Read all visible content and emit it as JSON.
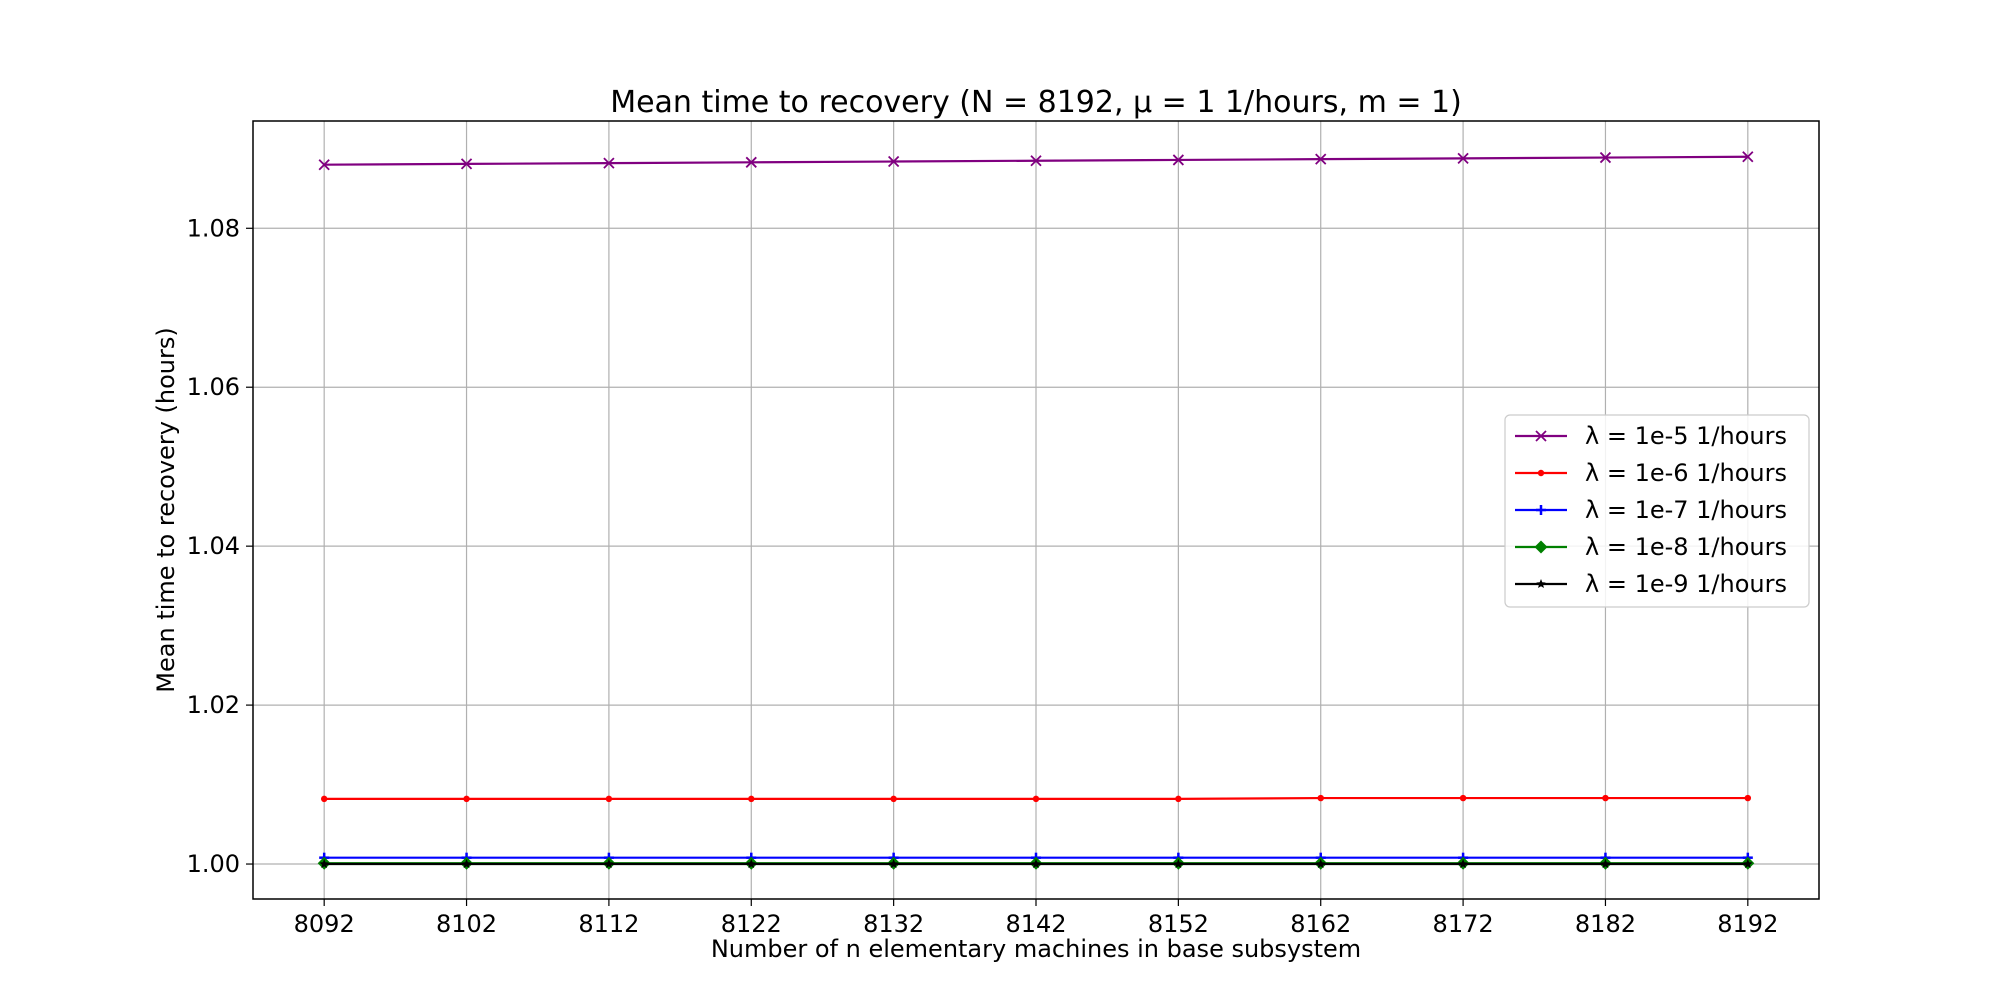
{
  "chart_data": {
    "type": "line",
    "title": "Mean time to recovery (N = 8192, μ = 1 1/hours, m = 1)",
    "xlabel": "Number of n elementary machines in base subsystem",
    "ylabel": "Mean time to recovery (hours)",
    "x": [
      8092,
      8102,
      8112,
      8122,
      8132,
      8142,
      8152,
      8162,
      8172,
      8182,
      8192
    ],
    "xticks": [
      "8092",
      "8102",
      "8112",
      "8122",
      "8132",
      "8142",
      "8152",
      "8162",
      "8172",
      "8182",
      "8192"
    ],
    "yticks": [
      "1.00",
      "1.02",
      "1.04",
      "1.06",
      "1.08"
    ],
    "xlim": [
      8087,
      8197
    ],
    "ylim": [
      0.9956,
      1.0935
    ],
    "grid": true,
    "legend_position": "center-right",
    "series": [
      {
        "name": "λ = 1e-5 1/hours",
        "color": "#800080",
        "marker": "x-marker",
        "values": [
          1.088,
          1.0881,
          1.0882,
          1.0883,
          1.0884,
          1.0885,
          1.0886,
          1.0887,
          1.0888,
          1.0889,
          1.089
        ]
      },
      {
        "name": "λ = 1e-6 1/hours",
        "color": "#ff0000",
        "marker": "point-marker",
        "values": [
          1.0082,
          1.0082,
          1.0082,
          1.0082,
          1.0082,
          1.0082,
          1.0082,
          1.0083,
          1.0083,
          1.0083,
          1.0083
        ]
      },
      {
        "name": "λ = 1e-7 1/hours",
        "color": "#0000ff",
        "marker": "plus-marker",
        "values": [
          1.0008,
          1.0008,
          1.0008,
          1.0008,
          1.0008,
          1.0008,
          1.0008,
          1.0008,
          1.0008,
          1.0008,
          1.0008
        ]
      },
      {
        "name": "λ = 1e-8 1/hours",
        "color": "#008000",
        "marker": "diamond-marker",
        "values": [
          1.0001,
          1.0001,
          1.0001,
          1.0001,
          1.0001,
          1.0001,
          1.0001,
          1.0001,
          1.0001,
          1.0001,
          1.0001
        ]
      },
      {
        "name": "λ = 1e-9 1/hours",
        "color": "#000000",
        "marker": "star-marker",
        "values": [
          1.0,
          1.0,
          1.0,
          1.0,
          1.0,
          1.0,
          1.0,
          1.0,
          1.0,
          1.0,
          1.0
        ]
      }
    ]
  }
}
